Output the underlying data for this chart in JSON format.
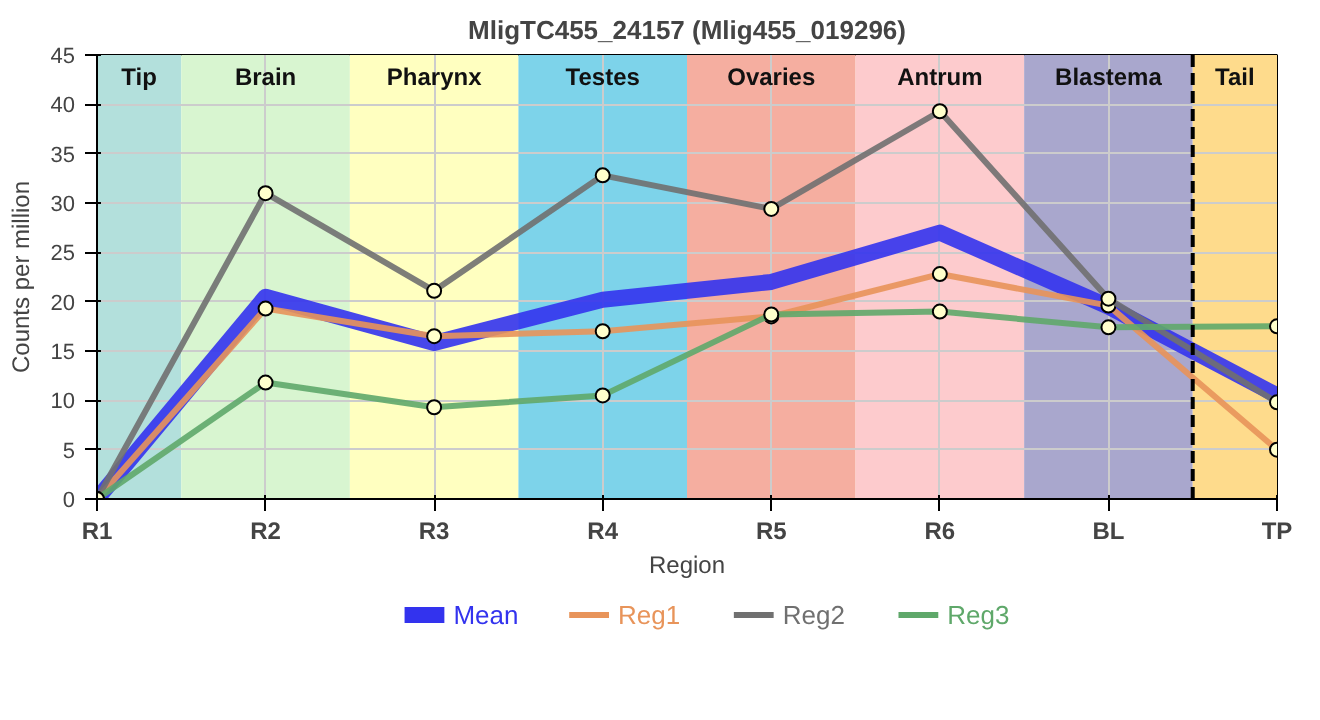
{
  "chart_data": {
    "type": "line",
    "title": "MligTC455_24157 (Mlig455_019296)",
    "xlabel": "Region",
    "ylabel": "Counts per million",
    "categories": [
      "R1",
      "R2",
      "R3",
      "R4",
      "R5",
      "R6",
      "BL",
      "TP"
    ],
    "ylim": [
      0,
      45
    ],
    "yticks": [
      0,
      5,
      10,
      15,
      20,
      25,
      30,
      35,
      40,
      45
    ],
    "series": [
      {
        "name": "Mean",
        "color": "#3333ee",
        "marker": "none",
        "values": [
          0,
          20.5,
          15.8,
          20.2,
          22.0,
          27.0,
          19.5,
          10.5
        ]
      },
      {
        "name": "Reg1",
        "color": "#e8945a",
        "marker": "circle",
        "values": [
          0,
          19.3,
          16.5,
          17.0,
          18.5,
          22.8,
          19.6,
          5.0
        ]
      },
      {
        "name": "Reg2",
        "color": "#707070",
        "marker": "circle",
        "values": [
          0,
          31.0,
          21.1,
          32.8,
          29.4,
          39.3,
          20.3,
          9.8
        ]
      },
      {
        "name": "Reg3",
        "color": "#5fa86a",
        "marker": "circle",
        "values": [
          0,
          11.8,
          9.3,
          10.5,
          18.7,
          19.0,
          17.4,
          17.5
        ]
      }
    ],
    "bands": [
      {
        "axis": "x",
        "from": "R1",
        "to": "R1",
        "label": "Tip",
        "color": "#b3e0dc"
      },
      {
        "axis": "x",
        "from": "R2",
        "to": "R2",
        "label": "Brain",
        "color": "#d8f5d0"
      },
      {
        "axis": "x",
        "from": "R3",
        "to": "R3",
        "label": "Pharynx",
        "color": "#ffffc0"
      },
      {
        "axis": "x",
        "from": "R4",
        "to": "R4",
        "label": "Testes",
        "color": "#7dd3ea"
      },
      {
        "axis": "x",
        "from": "R5",
        "to": "R5",
        "label": "Ovaries",
        "color": "#f5aea0"
      },
      {
        "axis": "x",
        "from": "R6",
        "to": "R6",
        "label": "Antrum",
        "color": "#fdcbcd"
      },
      {
        "axis": "x",
        "from": "BL",
        "to": "BL",
        "label": "Blastema",
        "color": "#a9a7cd"
      },
      {
        "axis": "x",
        "from": "TP",
        "to": "TP",
        "label": "Tail",
        "color": "#fedb8c"
      }
    ],
    "ref_lines": [
      {
        "axis": "x",
        "value": "TP",
        "label": null,
        "color": "#000000",
        "line_style": "dashed"
      }
    ],
    "grid": true,
    "legend": "bottom"
  }
}
